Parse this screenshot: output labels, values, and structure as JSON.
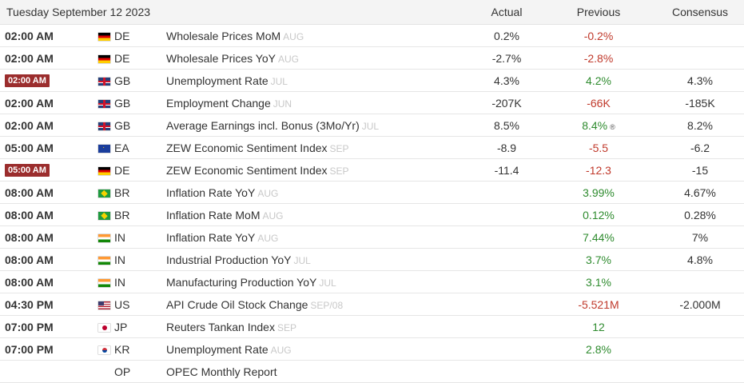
{
  "header": {
    "date": "Tuesday September 12 2023",
    "actual": "Actual",
    "previous": "Previous",
    "consensus": "Consensus"
  },
  "rows": [
    {
      "time": "02:00 AM",
      "badge": false,
      "flag": "DE",
      "country": "DE",
      "event": "Wholesale Prices MoM",
      "ref": "AUG",
      "actual": "0.2%",
      "previous": "-0.2%",
      "prev_color": "neg",
      "consensus": ""
    },
    {
      "time": "02:00 AM",
      "badge": false,
      "flag": "DE",
      "country": "DE",
      "event": "Wholesale Prices YoY",
      "ref": "AUG",
      "actual": "-2.7%",
      "previous": "-2.8%",
      "prev_color": "neg",
      "consensus": ""
    },
    {
      "time": "02:00 AM",
      "badge": true,
      "flag": "GB",
      "country": "GB",
      "event": "Unemployment Rate",
      "ref": "JUL",
      "actual": "4.3%",
      "previous": "4.2%",
      "prev_color": "pos",
      "consensus": "4.3%"
    },
    {
      "time": "02:00 AM",
      "badge": false,
      "flag": "GB",
      "country": "GB",
      "event": "Employment Change",
      "ref": "JUN",
      "actual": "-207K",
      "previous": "-66K",
      "prev_color": "neg",
      "consensus": "-185K"
    },
    {
      "time": "02:00 AM",
      "badge": false,
      "flag": "GB",
      "country": "GB",
      "event": "Average Earnings incl. Bonus (3Mo/Yr)",
      "ref": "JUL",
      "actual": "8.5%",
      "previous": "8.4%",
      "prev_color": "pos",
      "revised": "®",
      "consensus": "8.2%"
    },
    {
      "time": "05:00 AM",
      "badge": false,
      "flag": "EA",
      "country": "EA",
      "event": "ZEW Economic Sentiment Index",
      "ref": "SEP",
      "actual": "-8.9",
      "previous": "-5.5",
      "prev_color": "neg",
      "consensus": "-6.2"
    },
    {
      "time": "05:00 AM",
      "badge": true,
      "flag": "DE",
      "country": "DE",
      "event": "ZEW Economic Sentiment Index",
      "ref": "SEP",
      "actual": "-11.4",
      "previous": "-12.3",
      "prev_color": "neg",
      "consensus": "-15"
    },
    {
      "time": "08:00 AM",
      "badge": false,
      "flag": "BR",
      "country": "BR",
      "event": "Inflation Rate YoY",
      "ref": "AUG",
      "actual": "",
      "previous": "3.99%",
      "prev_color": "pos",
      "consensus": "4.67%"
    },
    {
      "time": "08:00 AM",
      "badge": false,
      "flag": "BR",
      "country": "BR",
      "event": "Inflation Rate MoM",
      "ref": "AUG",
      "actual": "",
      "previous": "0.12%",
      "prev_color": "pos",
      "consensus": "0.28%"
    },
    {
      "time": "08:00 AM",
      "badge": false,
      "flag": "IN",
      "country": "IN",
      "event": "Inflation Rate YoY",
      "ref": "AUG",
      "actual": "",
      "previous": "7.44%",
      "prev_color": "pos",
      "consensus": "7%"
    },
    {
      "time": "08:00 AM",
      "badge": false,
      "flag": "IN",
      "country": "IN",
      "event": "Industrial Production YoY",
      "ref": "JUL",
      "actual": "",
      "previous": "3.7%",
      "prev_color": "pos",
      "consensus": "4.8%"
    },
    {
      "time": "08:00 AM",
      "badge": false,
      "flag": "IN",
      "country": "IN",
      "event": "Manufacturing Production YoY",
      "ref": "JUL",
      "actual": "",
      "previous": "3.1%",
      "prev_color": "pos",
      "consensus": ""
    },
    {
      "time": "04:30 PM",
      "badge": false,
      "flag": "US",
      "country": "US",
      "event": "API Crude Oil Stock Change",
      "ref": "SEP/08",
      "actual": "",
      "previous": "-5.521M",
      "prev_color": "neg",
      "consensus": "-2.000M"
    },
    {
      "time": "07:00 PM",
      "badge": false,
      "flag": "JP",
      "country": "JP",
      "event": "Reuters Tankan Index",
      "ref": "SEP",
      "actual": "",
      "previous": "12",
      "prev_color": "pos",
      "consensus": ""
    },
    {
      "time": "07:00 PM",
      "badge": false,
      "flag": "KR",
      "country": "KR",
      "event": "Unemployment Rate",
      "ref": "AUG",
      "actual": "",
      "previous": "2.8%",
      "prev_color": "pos",
      "consensus": ""
    },
    {
      "time": "",
      "badge": false,
      "flag": "",
      "country": "OP",
      "event": "OPEC Monthly Report",
      "ref": "",
      "actual": "",
      "previous": "",
      "prev_color": "",
      "consensus": ""
    }
  ]
}
